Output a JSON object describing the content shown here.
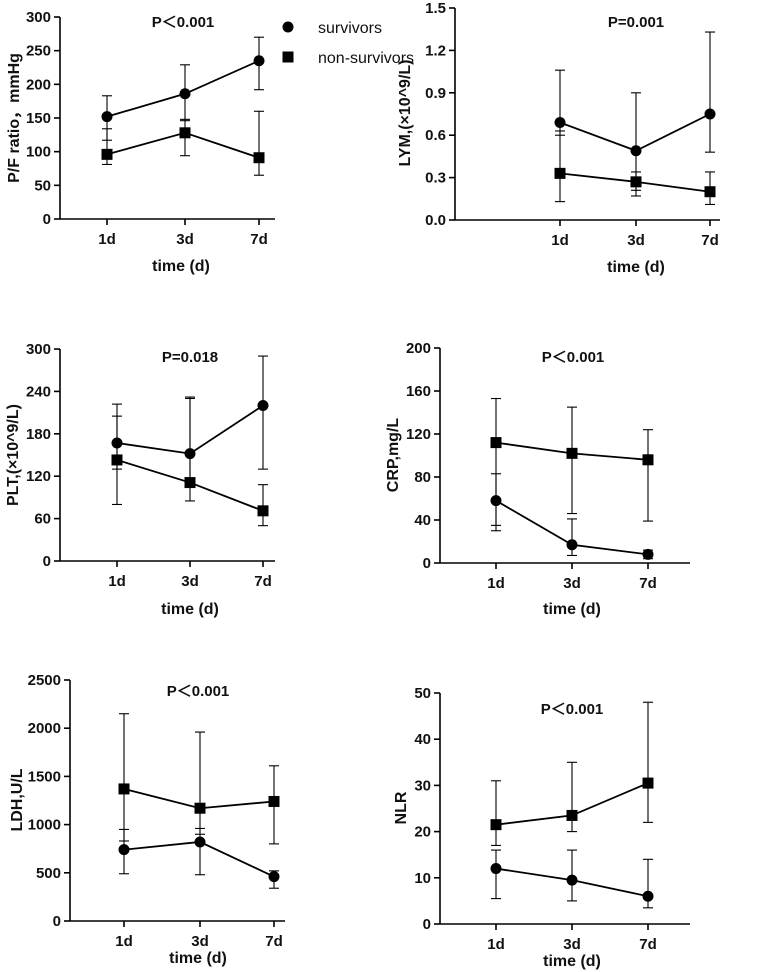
{
  "legend": {
    "position": "top-center",
    "items": [
      {
        "name": "survivors",
        "marker": "circle"
      },
      {
        "name": "non-survivors",
        "marker": "square"
      }
    ]
  },
  "chart_data": [
    {
      "type": "line",
      "title": "P＜0.001",
      "xlabel": "time (d)",
      "ylabel": "P/F ratio，mmHg",
      "categories": [
        "1d",
        "3d",
        "7d"
      ],
      "ylim": [
        0,
        300
      ],
      "yticks": [
        "0",
        "50",
        "100",
        "150",
        "200",
        "250",
        "300"
      ],
      "series": [
        {
          "name": "survivors",
          "marker": "circle",
          "values": [
            152,
            186,
            235
          ],
          "err_low": [
            117,
            146,
            192
          ],
          "err_high": [
            183,
            229,
            270
          ]
        },
        {
          "name": "non-survivors",
          "marker": "square",
          "values": [
            96,
            128,
            91
          ],
          "err_low": [
            81,
            94,
            65
          ],
          "err_high": [
            134,
            148,
            160
          ]
        }
      ]
    },
    {
      "type": "line",
      "title": "P=0.001",
      "xlabel": "time (d)",
      "ylabel": "LYM,(×10^9/L)",
      "categories": [
        "1d",
        "3d",
        "7d"
      ],
      "ylim": [
        0,
        1.5
      ],
      "yticks": [
        "0.0",
        "0.3",
        "0.6",
        "0.9",
        "1.2",
        "1.5"
      ],
      "series": [
        {
          "name": "survivors",
          "marker": "circle",
          "values": [
            0.69,
            0.49,
            0.75
          ],
          "err_low": [
            0.6,
            0.21,
            0.48
          ],
          "err_high": [
            1.06,
            0.9,
            1.33
          ]
        },
        {
          "name": "non-survivors",
          "marker": "square",
          "values": [
            0.33,
            0.27,
            0.2
          ],
          "err_low": [
            0.13,
            0.17,
            0.11
          ],
          "err_high": [
            0.63,
            0.34,
            0.34
          ]
        }
      ]
    },
    {
      "type": "line",
      "title": "P=0.018",
      "xlabel": "time (d)",
      "ylabel": "PLT,(×10^9/L)",
      "categories": [
        "1d",
        "3d",
        "7d"
      ],
      "ylim": [
        0,
        300
      ],
      "yticks": [
        "0",
        "60",
        "120",
        "180",
        "240",
        "300"
      ],
      "series": [
        {
          "name": "survivors",
          "marker": "circle",
          "values": [
            167,
            152,
            220
          ],
          "err_low": [
            130,
            110,
            130
          ],
          "err_high": [
            222,
            230,
            290
          ]
        },
        {
          "name": "non-survivors",
          "marker": "square",
          "values": [
            143,
            111,
            71
          ],
          "err_low": [
            80,
            85,
            50
          ],
          "err_high": [
            205,
            232,
            108
          ]
        }
      ]
    },
    {
      "type": "line",
      "title": "P＜0.001",
      "xlabel": "time (d)",
      "ylabel": "CRP,mg/L",
      "categories": [
        "1d",
        "3d",
        "7d"
      ],
      "ylim": [
        0,
        200
      ],
      "yticks": [
        "0",
        "40",
        "80",
        "120",
        "160",
        "200"
      ],
      "series": [
        {
          "name": "survivors",
          "marker": "circle",
          "values": [
            58,
            17,
            8
          ],
          "err_low": [
            30,
            7,
            4
          ],
          "err_high": [
            83,
            41,
            12
          ]
        },
        {
          "name": "non-survivors",
          "marker": "square",
          "values": [
            112,
            102,
            96
          ],
          "err_low": [
            35,
            46,
            39
          ],
          "err_high": [
            153,
            145,
            124
          ]
        }
      ]
    },
    {
      "type": "line",
      "title": "P＜0.001",
      "xlabel": "time (d)",
      "ylabel": "LDH,U/L",
      "categories": [
        "1d",
        "3d",
        "7d"
      ],
      "ylim": [
        0,
        2500
      ],
      "yticks": [
        "0",
        "500",
        "1000",
        "1500",
        "2000",
        "2500"
      ],
      "series": [
        {
          "name": "survivors",
          "marker": "circle",
          "values": [
            740,
            820,
            460
          ],
          "err_low": [
            490,
            480,
            340
          ],
          "err_high": [
            950,
            960,
            520
          ]
        },
        {
          "name": "non-survivors",
          "marker": "square",
          "values": [
            1370,
            1170,
            1240
          ],
          "err_low": [
            830,
            900,
            800
          ],
          "err_high": [
            2150,
            1960,
            1610
          ]
        }
      ]
    },
    {
      "type": "line",
      "title": "P＜0.001",
      "xlabel": "time (d)",
      "ylabel": "NLR",
      "categories": [
        "1d",
        "3d",
        "7d"
      ],
      "ylim": [
        0,
        50
      ],
      "yticks": [
        "0",
        "10",
        "20",
        "30",
        "40",
        "50"
      ],
      "series": [
        {
          "name": "survivors",
          "marker": "circle",
          "values": [
            12,
            9.5,
            6
          ],
          "err_low": [
            5.5,
            5,
            3.5
          ],
          "err_high": [
            16,
            16,
            14
          ]
        },
        {
          "name": "non-survivors",
          "marker": "square",
          "values": [
            21.5,
            23.5,
            30.5
          ],
          "err_low": [
            17,
            20,
            22
          ],
          "err_high": [
            31,
            35,
            48
          ]
        }
      ]
    }
  ]
}
